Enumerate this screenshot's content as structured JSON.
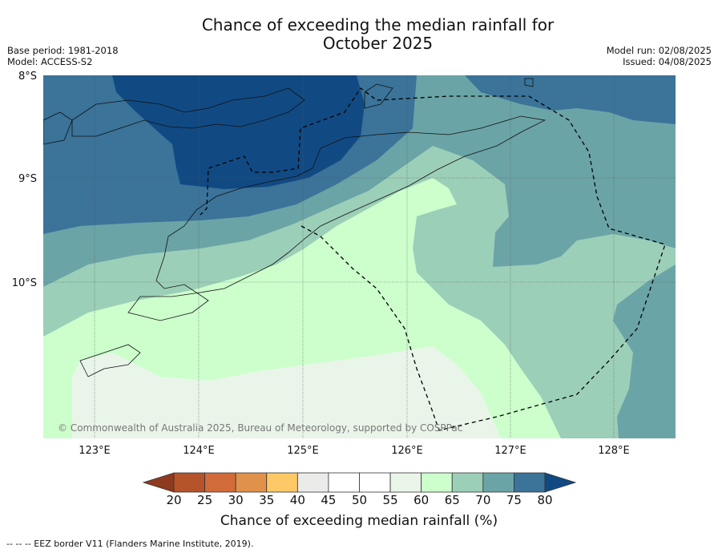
{
  "title_line1": "Chance of exceeding the median rainfall for",
  "title_line2": "October 2025",
  "meta_left": [
    "Base period: 1981-2018",
    "Model: ACCESS-S2"
  ],
  "meta_right": [
    "Model run: 02/08/2025",
    "Issued: 04/08/2025"
  ],
  "copyright": "© Commonwealth of Australia 2025, Bureau of Meteorology, supported by COSPPac",
  "lon_ticks": [
    "123°E",
    "124°E",
    "125°E",
    "126°E",
    "127°E",
    "128°E"
  ],
  "lat_ticks": [
    "8°S",
    "9°S",
    "10°S"
  ],
  "colorbar": {
    "label": "Chance of exceeding median rainfall (%)",
    "ticks": [
      "20",
      "25",
      "30",
      "35",
      "40",
      "45",
      "50",
      "55",
      "60",
      "65",
      "70",
      "75",
      "80"
    ],
    "colors": [
      "#8e3a1e",
      "#b5532b",
      "#d26b3a",
      "#e0924a",
      "#fdc966",
      "#ebebe9",
      "#ffffff",
      "#ffffff",
      "#eaf5ea",
      "#ccffcc",
      "#9ccfb8",
      "#6ba4a6",
      "#3b7399",
      "#114a83"
    ]
  },
  "footnote": "--  --  -- EEZ border V11 (Flanders Marine Institute, 2019)."
}
